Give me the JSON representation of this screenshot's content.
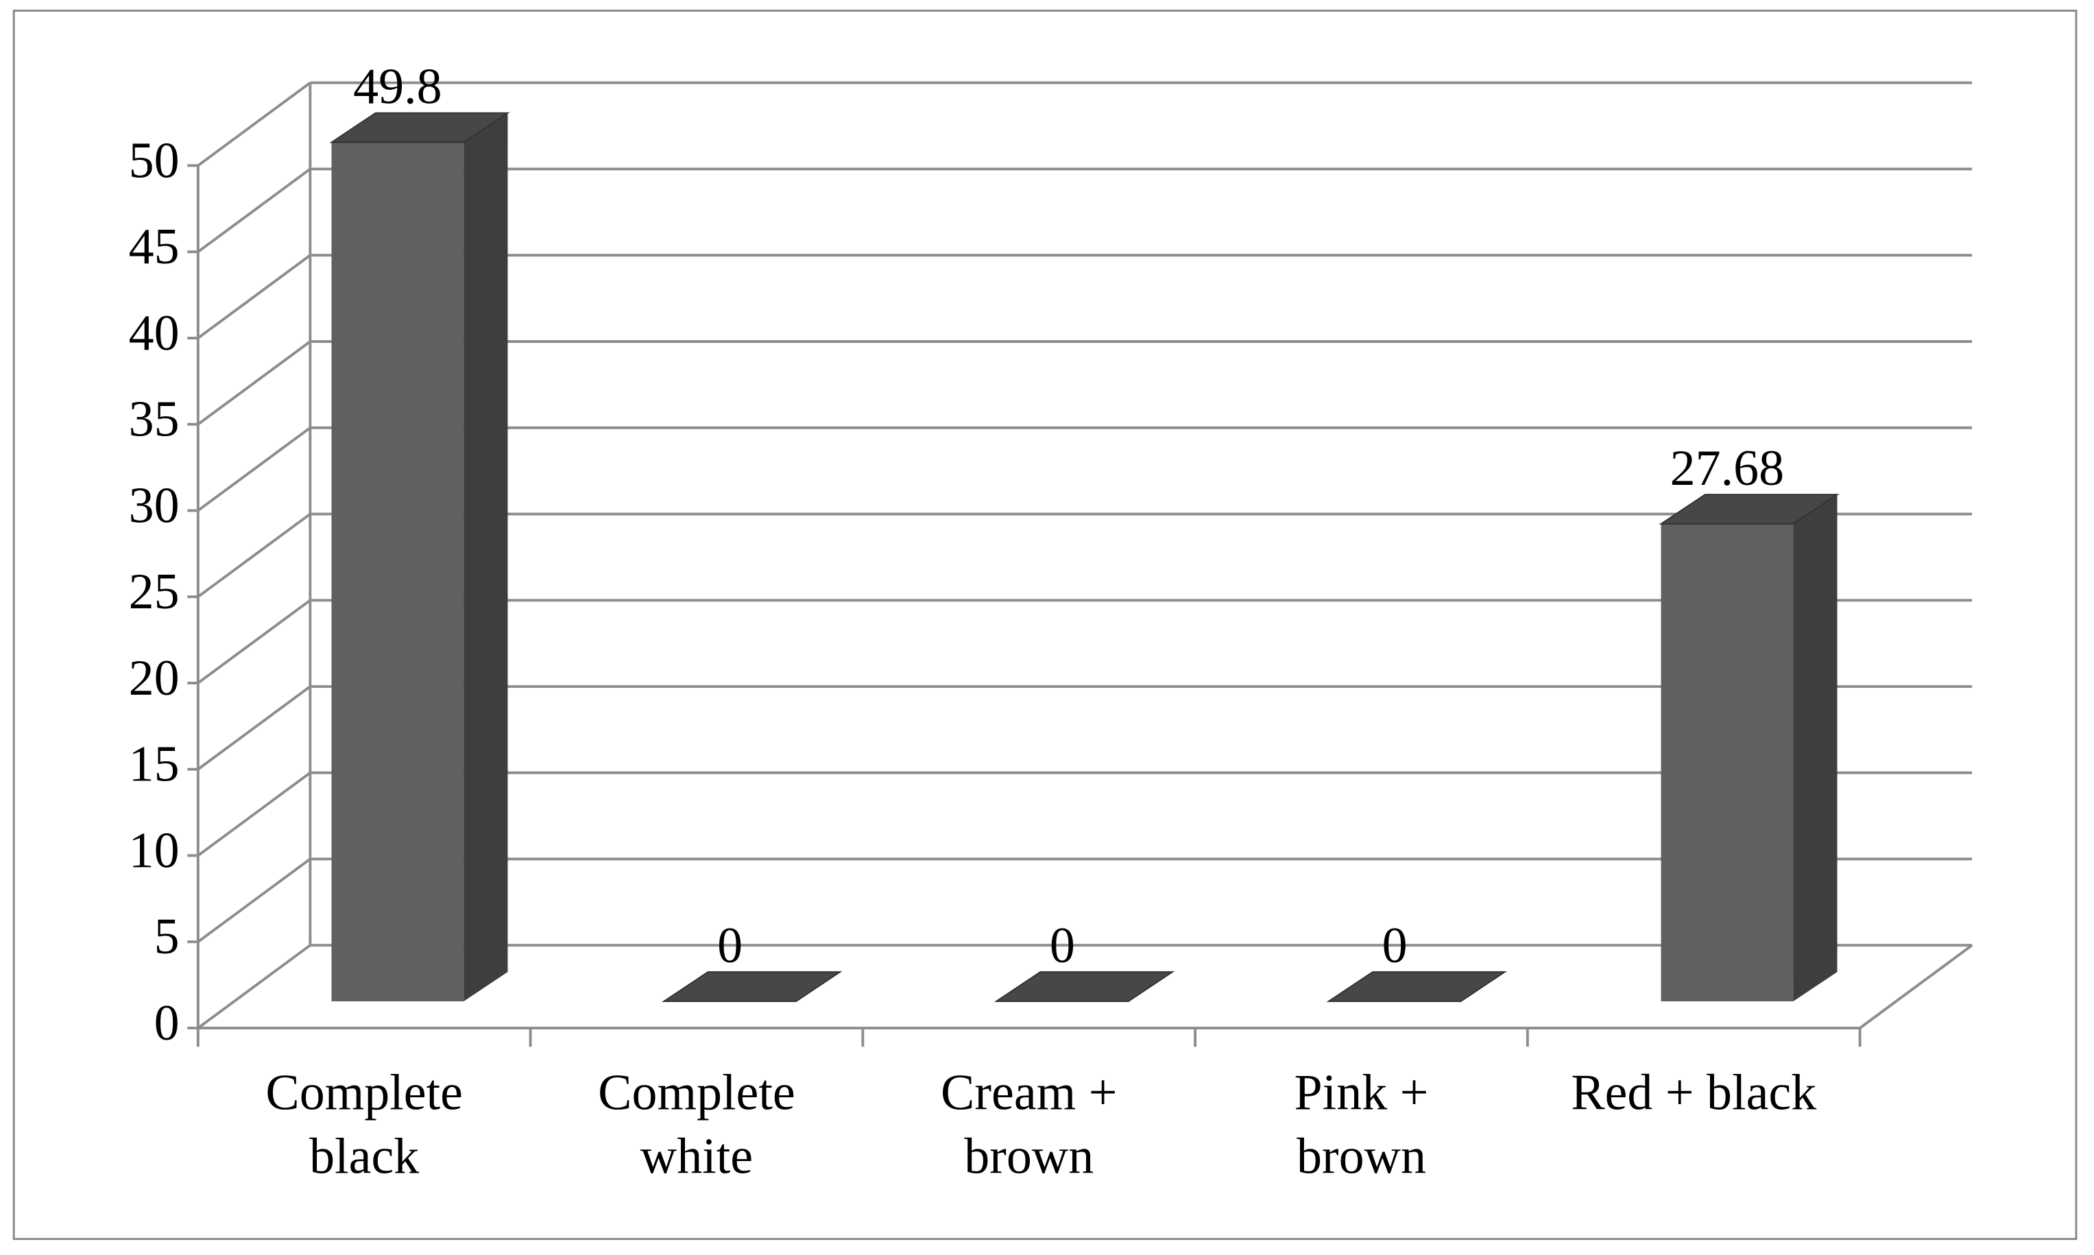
{
  "chart_data": {
    "type": "bar3d",
    "categories": [
      [
        "Complete",
        "black"
      ],
      [
        "Complete",
        "white"
      ],
      [
        "Cream +",
        "brown"
      ],
      [
        "Pink +",
        "brown"
      ],
      [
        "Red + black"
      ]
    ],
    "values": [
      49.8,
      0,
      0,
      0,
      27.68
    ],
    "color": "#606060",
    "ylim": [
      0,
      50
    ],
    "yticks": [
      0,
      5,
      10,
      15,
      20,
      25,
      30,
      35,
      40,
      45,
      50
    ],
    "grid": true
  }
}
